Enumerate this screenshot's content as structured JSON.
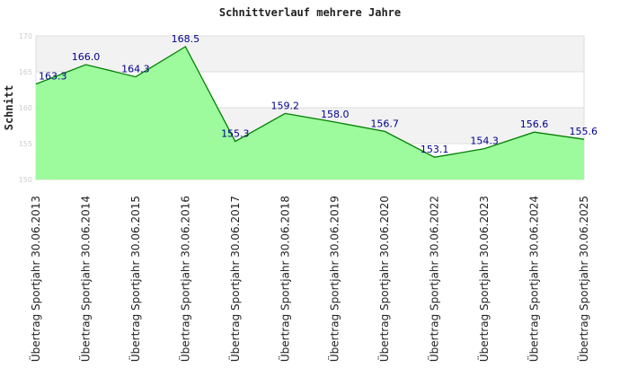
{
  "chart_data": {
    "type": "area",
    "title": "Schnittverlauf mehrere Jahre",
    "xlabel": "",
    "ylabel": "Schnitt",
    "ylim": [
      150,
      170
    ],
    "yticks": [
      "150",
      "155",
      "160",
      "165",
      "170"
    ],
    "categories": [
      "Übertrag Sportjahr 30.06.2013",
      "Übertrag Sportjahr 30.06.2014",
      "Übertrag Sportjahr 30.06.2015",
      "Übertrag Sportjahr 30.06.2016",
      "Übertrag Sportjahr 30.06.2017",
      "Übertrag Sportjahr 30.06.2018",
      "Übertrag Sportjahr 30.06.2019",
      "Übertrag Sportjahr 30.06.2020",
      "Übertrag Sportjahr 30.06.2022",
      "Übertrag Sportjahr 30.06.2023",
      "Übertrag Sportjahr 30.06.2024",
      "Übertrag Sportjahr 30.06.2025"
    ],
    "values": [
      163.3,
      166.0,
      164.3,
      168.5,
      155.3,
      159.2,
      158.0,
      156.7,
      153.1,
      154.3,
      156.6,
      155.6
    ],
    "labels": [
      "163.3",
      "166.0",
      "164.3",
      "168.5",
      "155.3",
      "159.2",
      "158.0",
      "156.7",
      "153.1",
      "154.3",
      "156.6",
      "155.6"
    ],
    "grid": true,
    "colors": {
      "fill": "#98fb98",
      "line": "#008000",
      "label": "#00008b",
      "band": "#f2f2f2"
    }
  }
}
